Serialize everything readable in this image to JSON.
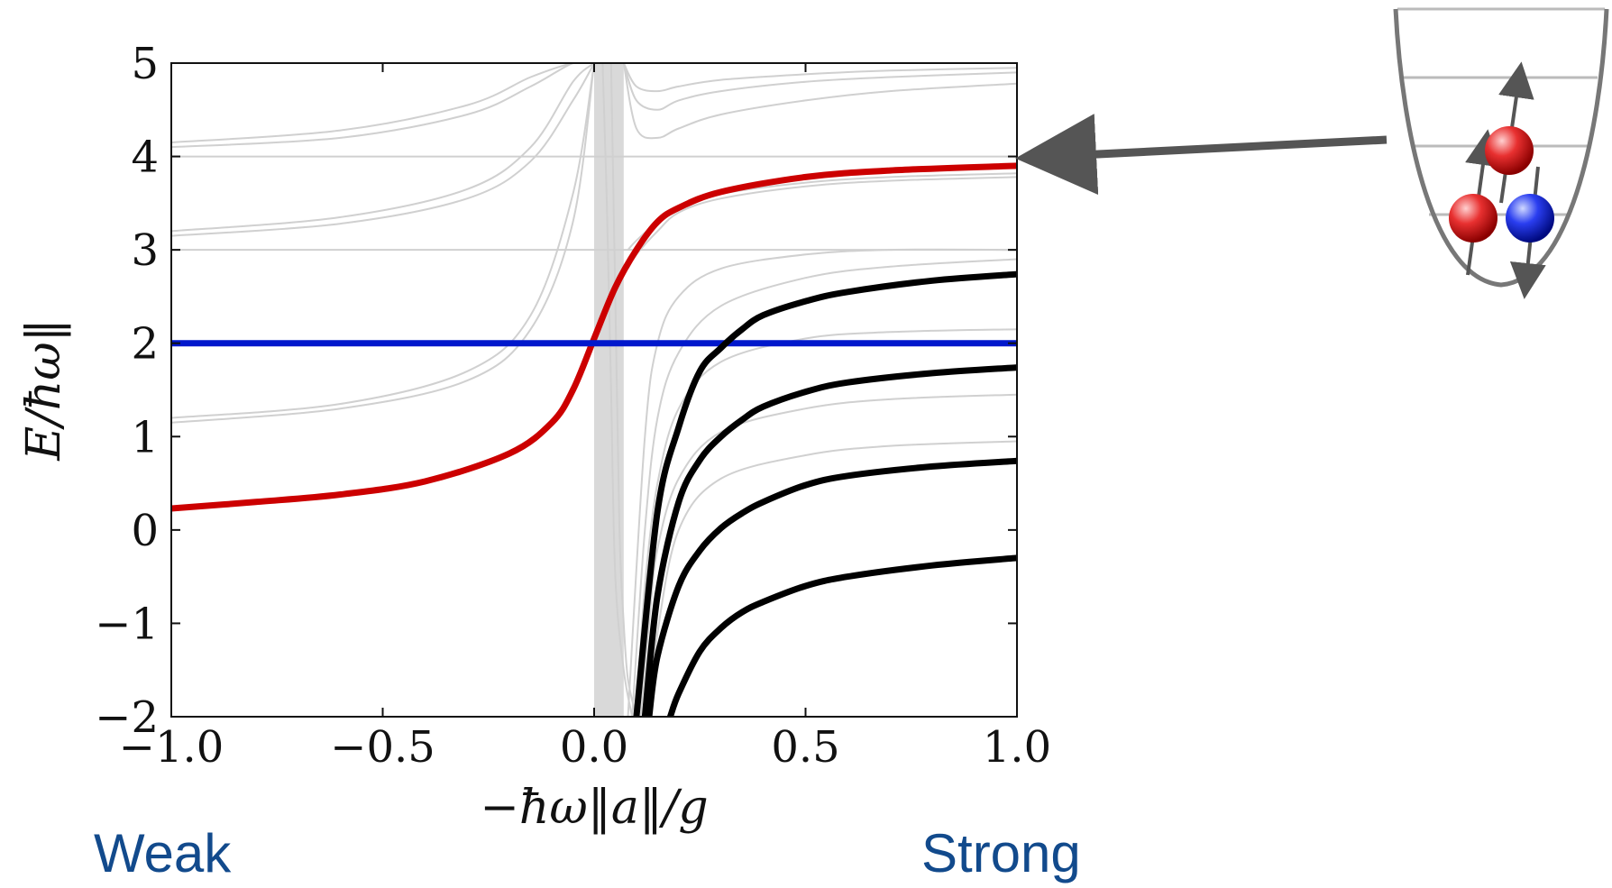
{
  "chart_data": {
    "type": "line",
    "xlabel": "−ħω‖a‖/g",
    "ylabel": "E/ħω‖",
    "xlim": [
      -1.0,
      1.0
    ],
    "ylim": [
      -2,
      5
    ],
    "x_ticks": [
      -1.0,
      -0.5,
      0.0,
      0.5,
      1.0
    ],
    "x_tick_labels": [
      "−1.0",
      "−0.5",
      "0.0",
      "0.5",
      "1.0"
    ],
    "y_ticks": [
      -2,
      -1,
      0,
      1,
      2,
      3,
      4,
      5
    ],
    "y_tick_labels": [
      "−2",
      "−1",
      "0",
      "1",
      "2",
      "3",
      "4",
      "5"
    ],
    "grid": false,
    "shaded_band": {
      "x": [
        0.0,
        0.07
      ],
      "color": "#d9d9d9"
    },
    "highlight_series": [
      {
        "color": "#cc0000",
        "x": [
          -1.0,
          -0.8,
          -0.6,
          -0.4,
          -0.2,
          -0.1,
          -0.05,
          0.0,
          0.05,
          0.1,
          0.15,
          0.2,
          0.3,
          0.5,
          0.7,
          1.0
        ],
        "y": [
          0.23,
          0.3,
          0.38,
          0.52,
          0.82,
          1.15,
          1.5,
          2.05,
          2.6,
          3.0,
          3.3,
          3.45,
          3.62,
          3.78,
          3.85,
          3.9
        ]
      },
      {
        "color": "#0018cc",
        "x": [
          -1.0,
          1.0
        ],
        "y": [
          2.0,
          2.0
        ]
      },
      {
        "color": "#000000",
        "x": [
          0.1,
          0.15,
          0.2,
          0.25,
          0.3,
          0.35,
          0.4,
          0.5,
          0.6,
          0.8,
          1.0
        ],
        "y": [
          -2.0,
          0.2,
          1.1,
          1.7,
          1.95,
          2.15,
          2.3,
          2.45,
          2.55,
          2.67,
          2.74
        ]
      },
      {
        "color": "#000000",
        "x": [
          0.12,
          0.15,
          0.2,
          0.25,
          0.3,
          0.35,
          0.4,
          0.5,
          0.6,
          0.8,
          1.0
        ],
        "y": [
          -2.0,
          -0.7,
          0.3,
          0.75,
          1.0,
          1.18,
          1.32,
          1.48,
          1.58,
          1.68,
          1.74
        ]
      },
      {
        "color": "#000000",
        "x": [
          0.13,
          0.15,
          0.2,
          0.25,
          0.3,
          0.35,
          0.4,
          0.5,
          0.6,
          0.8,
          1.0
        ],
        "y": [
          -2.0,
          -1.35,
          -0.6,
          -0.22,
          0.02,
          0.18,
          0.3,
          0.48,
          0.58,
          0.68,
          0.74
        ]
      },
      {
        "color": "#000000",
        "x": [
          0.18,
          0.2,
          0.25,
          0.3,
          0.35,
          0.4,
          0.5,
          0.6,
          0.8,
          1.0
        ],
        "y": [
          -2.0,
          -1.75,
          -1.3,
          -1.05,
          -0.88,
          -0.77,
          -0.6,
          -0.5,
          -0.38,
          -0.3
        ]
      }
    ],
    "background_series": [
      {
        "color": "#d0d0d0",
        "x": [
          -1.0,
          -0.6,
          -0.3,
          -0.15,
          -0.05,
          0.0
        ],
        "y": [
          4.1,
          4.2,
          4.45,
          4.75,
          5.0,
          5.0
        ]
      },
      {
        "color": "#d0d0d0",
        "x": [
          -1.0,
          -0.6,
          -0.3,
          -0.15,
          -0.05,
          0.0
        ],
        "y": [
          4.15,
          4.28,
          4.55,
          4.85,
          5.0,
          5.0
        ]
      },
      {
        "color": "#d0d0d0",
        "x": [
          -1.0,
          -0.6,
          -0.3,
          -0.15,
          -0.05,
          0.0
        ],
        "y": [
          3.15,
          3.28,
          3.55,
          3.95,
          4.6,
          5.0
        ]
      },
      {
        "color": "#d0d0d0",
        "x": [
          -1.0,
          -0.6,
          -0.3,
          -0.15,
          -0.05,
          0.0
        ],
        "y": [
          3.2,
          3.35,
          3.65,
          4.1,
          4.8,
          5.0
        ]
      },
      {
        "color": "#d0d0d0",
        "x": [
          -1.0,
          -0.6,
          -0.3,
          -0.15,
          -0.05,
          0.0
        ],
        "y": [
          1.2,
          1.35,
          1.7,
          2.3,
          3.6,
          5.0
        ]
      },
      {
        "color": "#d0d0d0",
        "x": [
          -1.0,
          -0.6,
          -0.3,
          -0.15,
          -0.05,
          0.0
        ],
        "y": [
          1.15,
          1.3,
          1.6,
          2.15,
          3.3,
          5.0
        ]
      },
      {
        "color": "#d0d0d0",
        "x": [
          -1.0,
          1.0
        ],
        "y": [
          4.0,
          4.0
        ]
      },
      {
        "color": "#d0d0d0",
        "x": [
          -1.0,
          1.0
        ],
        "y": [
          3.0,
          3.0
        ]
      },
      {
        "color": "#d0d0d0",
        "x": [
          0.07,
          0.1,
          0.15,
          0.2,
          0.3,
          0.5,
          0.7,
          1.0
        ],
        "y": [
          5.0,
          4.6,
          4.5,
          4.6,
          4.7,
          4.8,
          4.85,
          4.9
        ]
      },
      {
        "color": "#d0d0d0",
        "x": [
          0.07,
          0.1,
          0.15,
          0.2,
          0.3,
          0.5,
          0.7,
          1.0
        ],
        "y": [
          5.0,
          4.75,
          4.7,
          4.75,
          4.82,
          4.88,
          4.92,
          4.95
        ]
      },
      {
        "color": "#d0d0d0",
        "x": [
          0.07,
          0.1,
          0.15,
          0.2,
          0.3,
          0.5,
          0.7,
          1.0
        ],
        "y": [
          5.0,
          4.3,
          4.2,
          4.3,
          4.45,
          4.6,
          4.7,
          4.78
        ]
      },
      {
        "color": "#d0d0d0",
        "x": [
          0.08,
          0.1,
          0.15,
          0.2,
          0.3,
          0.5,
          0.7,
          1.0
        ],
        "y": [
          3.0,
          3.1,
          3.3,
          3.45,
          3.6,
          3.72,
          3.78,
          3.82
        ]
      },
      {
        "color": "#d0d0d0",
        "x": [
          0.08,
          0.1,
          0.15,
          0.2,
          0.3,
          0.5,
          0.7,
          1.0
        ],
        "y": [
          2.8,
          2.95,
          3.2,
          3.4,
          3.55,
          3.68,
          3.74,
          3.78
        ]
      },
      {
        "color": "#d0d0d0",
        "x": [
          0.08,
          0.12,
          0.15,
          0.2,
          0.3,
          0.5,
          0.7,
          1.0
        ],
        "y": [
          -2.0,
          1.0,
          2.0,
          2.5,
          2.8,
          2.95,
          3.0,
          3.0
        ]
      },
      {
        "color": "#d0d0d0",
        "x": [
          0.09,
          0.12,
          0.15,
          0.2,
          0.3,
          0.5,
          0.7,
          1.0
        ],
        "y": [
          -2.0,
          0.0,
          1.2,
          1.9,
          2.4,
          2.7,
          2.82,
          2.9
        ]
      },
      {
        "color": "#d0d0d0",
        "x": [
          0.1,
          0.12,
          0.15,
          0.2,
          0.3,
          0.5,
          0.7,
          1.0
        ],
        "y": [
          -2.0,
          -0.6,
          0.5,
          1.3,
          1.8,
          2.05,
          2.12,
          2.15
        ]
      },
      {
        "color": "#d0d0d0",
        "x": [
          0.11,
          0.13,
          0.15,
          0.2,
          0.3,
          0.5,
          0.7,
          1.0
        ],
        "y": [
          -2.0,
          -1.0,
          -0.2,
          0.55,
          1.05,
          1.3,
          1.4,
          1.45
        ]
      },
      {
        "color": "#d0d0d0",
        "x": [
          0.13,
          0.15,
          0.2,
          0.3,
          0.5,
          0.7,
          1.0
        ],
        "y": [
          -2.0,
          -1.1,
          0.0,
          0.55,
          0.8,
          0.9,
          0.95
        ]
      },
      {
        "color": "#d0d0d0",
        "x": [
          0.04,
          0.05,
          0.06,
          0.07,
          0.08,
          0.1
        ],
        "y": [
          5.0,
          2.5,
          0.0,
          -1.0,
          -1.6,
          -2.0
        ]
      },
      {
        "color": "#d0d0d0",
        "x": [
          0.02,
          0.03,
          0.04,
          0.05,
          0.07,
          0.09
        ],
        "y": [
          5.0,
          3.5,
          1.5,
          -0.5,
          -1.5,
          -2.0
        ]
      }
    ]
  },
  "labels": {
    "weak": "Weak",
    "strong": "Strong"
  },
  "diagram": {
    "arrow_color": "#555555",
    "trap_color": "#777777",
    "level_color": "#bbbbbb",
    "particles": [
      {
        "color": "#e01b1b",
        "spin": "up"
      },
      {
        "color": "#e01b1b",
        "spin": "up"
      },
      {
        "color": "#1b2ee0",
        "spin": "down"
      }
    ]
  }
}
